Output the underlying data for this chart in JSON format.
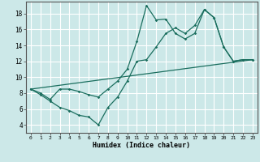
{
  "xlabel": "Humidex (Indice chaleur)",
  "bg_color": "#cce8e8",
  "grid_color": "#aacccc",
  "line_color": "#1a6e5e",
  "line1_y": [
    8.5,
    8.0,
    7.2,
    8.5,
    8.5,
    8.2,
    7.8,
    7.5,
    8.5,
    9.5,
    11.0,
    14.5,
    19.0,
    17.2,
    17.3,
    15.5,
    14.8,
    15.5,
    18.5,
    17.5,
    13.8,
    12.0,
    12.2,
    12.2
  ],
  "line2_y": [
    8.5,
    7.8,
    7.0,
    6.2,
    5.8,
    5.2,
    5.0,
    4.0,
    6.2,
    7.5,
    9.5,
    12.0,
    12.2,
    13.8,
    15.5,
    16.2,
    15.5,
    16.5,
    18.5,
    17.5,
    13.8,
    12.0,
    12.2,
    12.2
  ],
  "line3_x": [
    0,
    23
  ],
  "line3_y": [
    8.5,
    12.2
  ],
  "ylim": [
    3,
    19.5
  ],
  "xlim": [
    -0.5,
    23.5
  ],
  "yticks": [
    4,
    6,
    8,
    10,
    12,
    14,
    16,
    18
  ],
  "xticks": [
    0,
    1,
    2,
    3,
    4,
    5,
    6,
    7,
    8,
    9,
    10,
    11,
    12,
    13,
    14,
    15,
    16,
    17,
    18,
    19,
    20,
    21,
    22,
    23
  ]
}
